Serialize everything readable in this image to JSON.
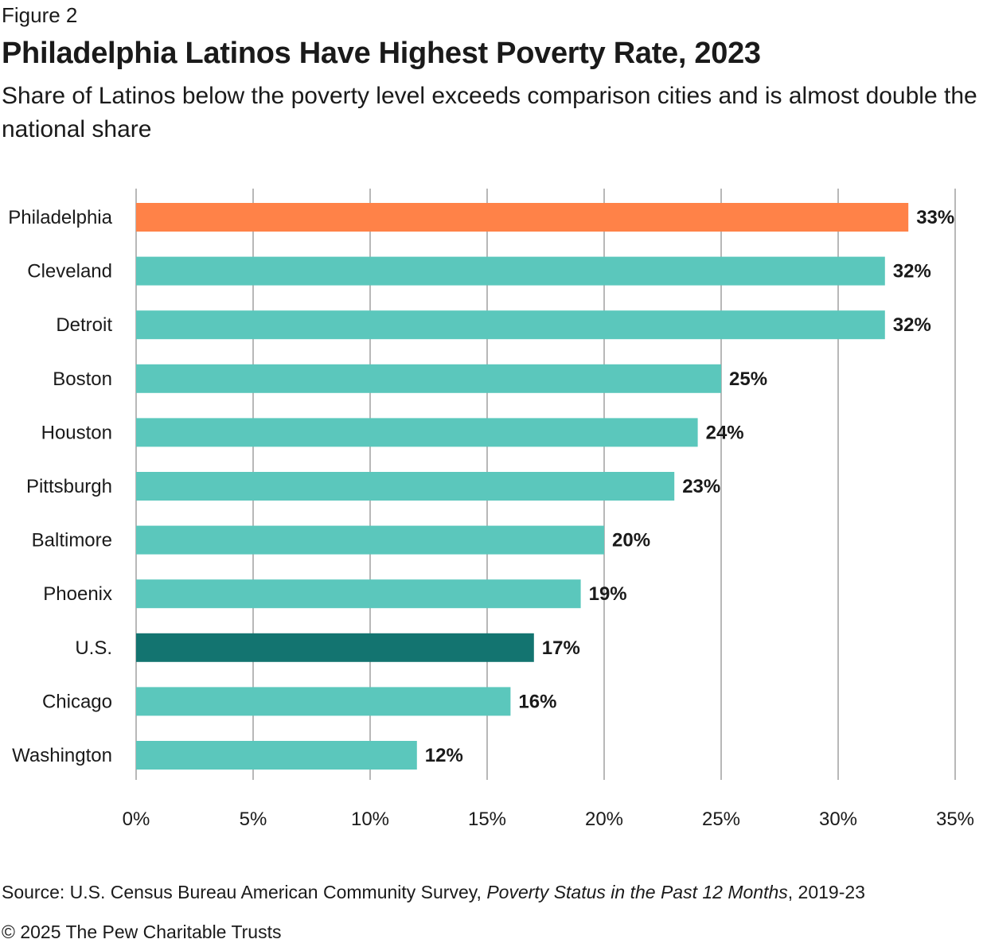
{
  "figure_label": "Figure 2",
  "source": {
    "prefix": "Source: U.S. Census Bureau American Community Survey, ",
    "italic": "Poverty Status in the Past 12 Months",
    "suffix": ", 2019-23"
  },
  "copyright": "© 2025 The Pew Charitable Trusts",
  "colors": {
    "highlight": "#FF8248",
    "default": "#5BC7BC",
    "national": "#137470",
    "grid": "#A0A0A0",
    "text": "#1a1a1a"
  },
  "chart_data": {
    "type": "bar",
    "orientation": "horizontal",
    "title": "Philadelphia Latinos Have Highest Poverty Rate, 2023",
    "subtitle": "Share of Latinos below the poverty level exceeds comparison cities and is almost double the national share",
    "categories": [
      "Philadelphia",
      "Cleveland",
      "Detroit",
      "Boston",
      "Houston",
      "Pittsburgh",
      "Baltimore",
      "Phoenix",
      "U.S.",
      "Chicago",
      "Washington"
    ],
    "values": [
      33,
      32,
      32,
      25,
      24,
      23,
      20,
      19,
      17,
      16,
      12
    ],
    "data_labels": [
      "33%",
      "32%",
      "32%",
      "25%",
      "24%",
      "23%",
      "20%",
      "19%",
      "17%",
      "16%",
      "12%"
    ],
    "bar_color_keys": [
      "highlight",
      "default",
      "default",
      "default",
      "default",
      "default",
      "default",
      "default",
      "national",
      "default",
      "default"
    ],
    "xlim": [
      0,
      35
    ],
    "xticks": [
      0,
      5,
      10,
      15,
      20,
      25,
      30,
      35
    ],
    "xtick_labels": [
      "0%",
      "5%",
      "10%",
      "15%",
      "20%",
      "25%",
      "30%",
      "35%"
    ],
    "xlabel": "",
    "ylabel": "",
    "grid": true,
    "legend": "none"
  }
}
